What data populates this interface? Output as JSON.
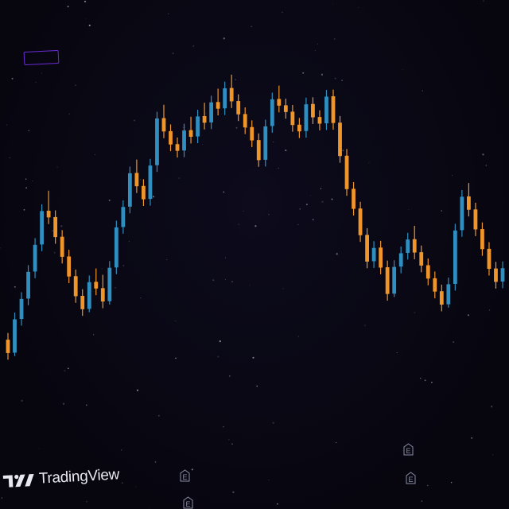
{
  "brand": {
    "name": "TradingView"
  },
  "events": [
    {
      "label": "E"
    },
    {
      "label": "E"
    },
    {
      "label": "E"
    },
    {
      "label": "E"
    }
  ],
  "colors": {
    "up": "#2e8fc0",
    "down": "#f0952a",
    "highlight": "#6a2bd6",
    "background": "#07060f"
  },
  "chart_data": {
    "type": "candlestick",
    "title": "",
    "xlabel": "",
    "ylabel": "",
    "grid": false,
    "ylim": [
      0,
      100
    ],
    "candles": [
      [
        22,
        24,
        16,
        18
      ],
      [
        18,
        30,
        17,
        28
      ],
      [
        28,
        36,
        26,
        34
      ],
      [
        34,
        44,
        32,
        42
      ],
      [
        42,
        52,
        40,
        50
      ],
      [
        50,
        62,
        48,
        60
      ],
      [
        60,
        66,
        56,
        58
      ],
      [
        58,
        60,
        50,
        52
      ],
      [
        52,
        54,
        44,
        46
      ],
      [
        46,
        48,
        38,
        40
      ],
      [
        40,
        42,
        32,
        34
      ],
      [
        34,
        36,
        28,
        30
      ],
      [
        30,
        40,
        29,
        38
      ],
      [
        38,
        42,
        34,
        36
      ],
      [
        36,
        40,
        30,
        32
      ],
      [
        32,
        44,
        31,
        42
      ],
      [
        42,
        56,
        40,
        54
      ],
      [
        54,
        62,
        52,
        60
      ],
      [
        60,
        72,
        58,
        70
      ],
      [
        70,
        74,
        64,
        66
      ],
      [
        66,
        68,
        60,
        62
      ],
      [
        62,
        74,
        60,
        72
      ],
      [
        72,
        88,
        70,
        86
      ],
      [
        86,
        90,
        80,
        82
      ],
      [
        82,
        84,
        76,
        78
      ],
      [
        78,
        80,
        74,
        76
      ],
      [
        76,
        84,
        74,
        82
      ],
      [
        82,
        86,
        78,
        80
      ],
      [
        80,
        88,
        78,
        86
      ],
      [
        86,
        90,
        82,
        84
      ],
      [
        84,
        92,
        82,
        90
      ],
      [
        90,
        94,
        86,
        88
      ],
      [
        88,
        96,
        86,
        94
      ],
      [
        94,
        98,
        88,
        90
      ],
      [
        90,
        92,
        84,
        86
      ],
      [
        86,
        88,
        80,
        82
      ],
      [
        82,
        84,
        76,
        78
      ],
      [
        78,
        80,
        70,
        72
      ],
      [
        72,
        84,
        70,
        82
      ],
      [
        82,
        92,
        80,
        90
      ],
      [
        90,
        94,
        86,
        88
      ],
      [
        88,
        90,
        84,
        86
      ],
      [
        86,
        88,
        80,
        82
      ],
      [
        82,
        84,
        78,
        80
      ],
      [
        80,
        90,
        78,
        88
      ],
      [
        88,
        90,
        82,
        84
      ],
      [
        84,
        86,
        80,
        82
      ],
      [
        82,
        92,
        80,
        90
      ],
      [
        90,
        92,
        80,
        82
      ],
      [
        82,
        84,
        70,
        72
      ],
      [
        72,
        74,
        60,
        62
      ],
      [
        62,
        64,
        54,
        56
      ],
      [
        56,
        58,
        46,
        48
      ],
      [
        48,
        50,
        38,
        40
      ],
      [
        40,
        46,
        38,
        44
      ],
      [
        44,
        46,
        36,
        38
      ],
      [
        38,
        40,
        28,
        30
      ],
      [
        30,
        40,
        29,
        38
      ],
      [
        38,
        44,
        36,
        42
      ],
      [
        42,
        48,
        40,
        46
      ],
      [
        46,
        50,
        40,
        42
      ],
      [
        42,
        44,
        36,
        38
      ],
      [
        38,
        40,
        32,
        34
      ],
      [
        34,
        36,
        28,
        30
      ],
      [
        30,
        32,
        24,
        26
      ],
      [
        26,
        34,
        25,
        32
      ],
      [
        32,
        50,
        30,
        48
      ],
      [
        48,
        60,
        46,
        58
      ],
      [
        58,
        62,
        52,
        54
      ],
      [
        54,
        56,
        46,
        48
      ],
      [
        48,
        50,
        40,
        42
      ],
      [
        42,
        44,
        34,
        36
      ],
      [
        36,
        38,
        30,
        32
      ],
      [
        32,
        38,
        30,
        36
      ]
    ]
  }
}
